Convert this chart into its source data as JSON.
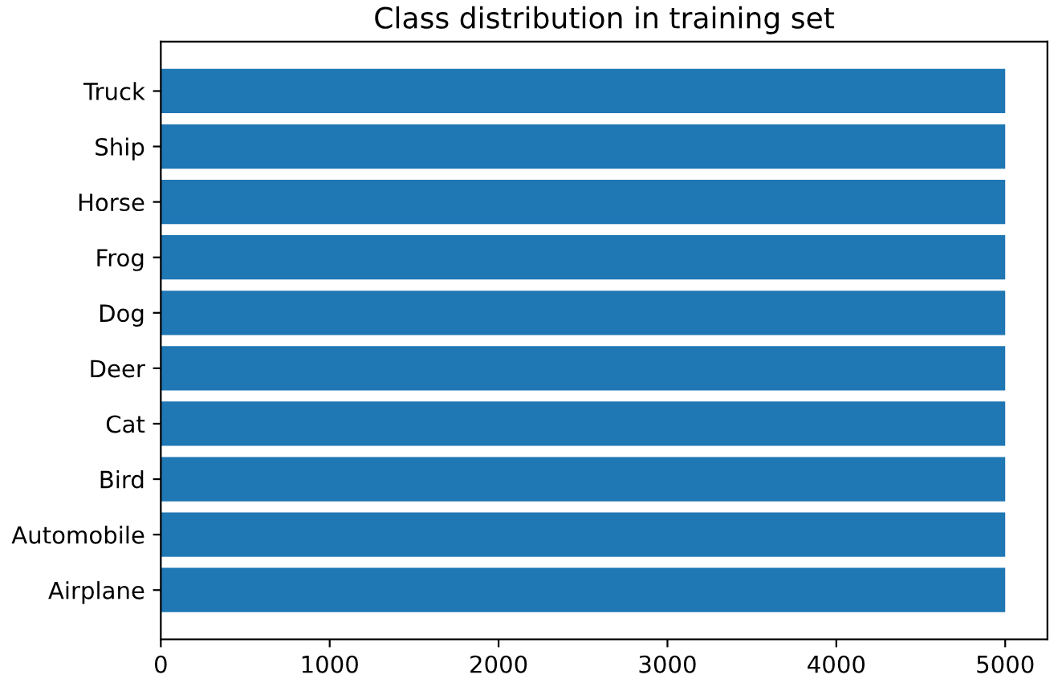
{
  "chart_data": {
    "type": "bar",
    "orientation": "horizontal",
    "title": "Class distribution in training set",
    "categories": [
      "Truck",
      "Ship",
      "Horse",
      "Frog",
      "Dog",
      "Deer",
      "Cat",
      "Bird",
      "Automobile",
      "Airplane"
    ],
    "values": [
      5000,
      5000,
      5000,
      5000,
      5000,
      5000,
      5000,
      5000,
      5000,
      5000
    ],
    "color": "#1f77b4",
    "xlim": [
      0,
      5250
    ],
    "xticks": [
      0,
      1000,
      2000,
      3000,
      4000,
      5000
    ],
    "grid": false
  }
}
